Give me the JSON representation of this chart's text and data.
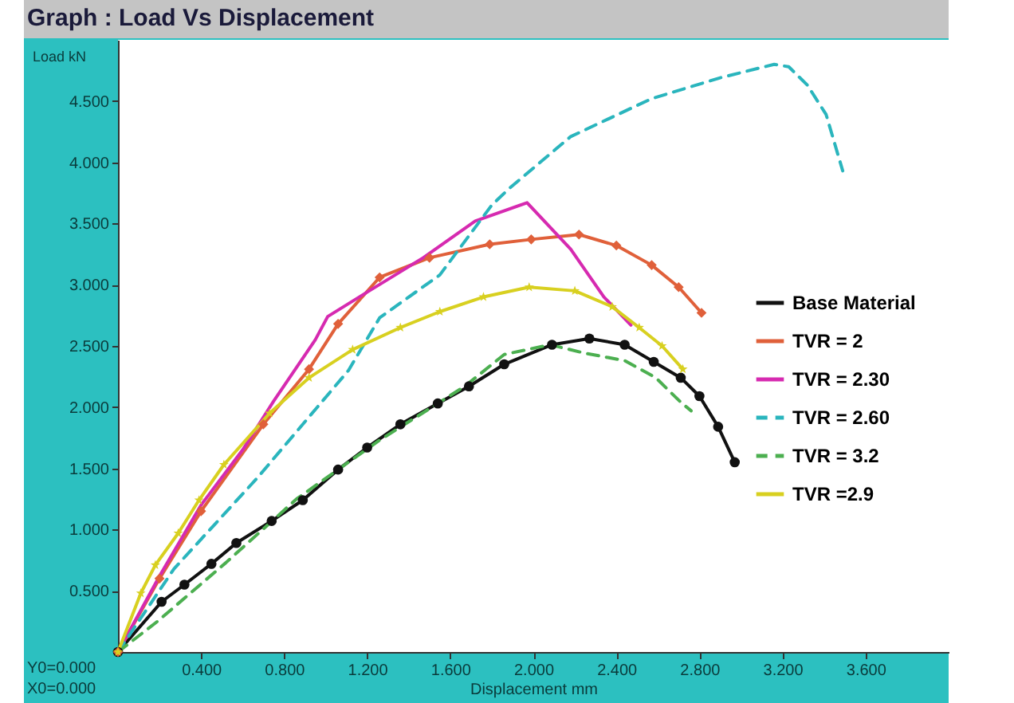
{
  "chart_data": {
    "type": "line",
    "title": "Graph : Load Vs Displacement",
    "xlabel": "Displacement  mm",
    "ylabel": "Load kN",
    "xlim": [
      0,
      4.0
    ],
    "ylim": [
      0,
      5.0
    ],
    "xticks": [
      {
        "value": 0.4,
        "label": "0.400"
      },
      {
        "value": 0.8,
        "label": "0.800"
      },
      {
        "value": 1.2,
        "label": "1.200"
      },
      {
        "value": 1.6,
        "label": "1.600"
      },
      {
        "value": 2.0,
        "label": "2.000"
      },
      {
        "value": 2.4,
        "label": "2.400"
      },
      {
        "value": 2.8,
        "label": "2.800"
      },
      {
        "value": 3.2,
        "label": "3.200"
      },
      {
        "value": 3.6,
        "label": "3.600"
      }
    ],
    "yticks": [
      {
        "value": 0.5,
        "label": "0.500"
      },
      {
        "value": 1.0,
        "label": "1.000"
      },
      {
        "value": 1.5,
        "label": "1.500"
      },
      {
        "value": 2.0,
        "label": "2.000"
      },
      {
        "value": 2.5,
        "label": "2.500"
      },
      {
        "value": 3.0,
        "label": "3.000"
      },
      {
        "value": 3.5,
        "label": "3.500"
      },
      {
        "value": 4.0,
        "label": "4.000"
      },
      {
        "value": 4.5,
        "label": "4.500"
      }
    ],
    "grid": false,
    "legend": "right",
    "annotations": [
      "Y0=0.000",
      "X0=0.000"
    ],
    "series": [
      {
        "name": "Base Material",
        "color": "#111111",
        "marker": "circle",
        "line_style": "solid",
        "x": [
          0,
          0.21,
          0.32,
          0.45,
          0.57,
          0.74,
          0.89,
          1.06,
          1.2,
          1.36,
          1.54,
          1.69,
          1.86,
          2.09,
          2.27,
          2.44,
          2.58,
          2.71,
          2.8,
          2.89,
          2.97
        ],
        "values": [
          0,
          0.41,
          0.55,
          0.72,
          0.89,
          1.07,
          1.24,
          1.49,
          1.67,
          1.86,
          2.03,
          2.17,
          2.35,
          2.51,
          2.56,
          2.51,
          2.37,
          2.24,
          2.09,
          1.84,
          1.55
        ]
      },
      {
        "name": "TVR = 2",
        "color": "#e0603a",
        "marker": "diamond",
        "line_style": "solid",
        "x": [
          0,
          0.2,
          0.4,
          0.7,
          0.92,
          1.06,
          1.26,
          1.5,
          1.79,
          1.99,
          2.22,
          2.4,
          2.57,
          2.7,
          2.81
        ],
        "values": [
          0,
          0.6,
          1.15,
          1.86,
          2.31,
          2.68,
          3.06,
          3.22,
          3.33,
          3.37,
          3.41,
          3.32,
          3.16,
          2.98,
          2.77
        ]
      },
      {
        "name": "TVR = 2.30",
        "color": "#d62ab0",
        "marker": "none",
        "line_style": "solid",
        "x": [
          0,
          0.2,
          0.4,
          0.6,
          0.75,
          0.95,
          1.01,
          1.21,
          1.47,
          1.72,
          1.97,
          2.18,
          2.34,
          2.47
        ],
        "values": [
          0,
          0.62,
          1.2,
          1.65,
          2.05,
          2.55,
          2.74,
          2.95,
          3.22,
          3.52,
          3.67,
          3.29,
          2.9,
          2.67
        ]
      },
      {
        "name": "TVR = 2.60",
        "color": "#2ab5bd",
        "marker": "none",
        "line_style": "dashed",
        "x": [
          0,
          0.27,
          0.67,
          1.11,
          1.26,
          1.55,
          1.8,
          1.88,
          2.18,
          2.57,
          2.9,
          3.16,
          3.23,
          3.32,
          3.41,
          3.49
        ],
        "values": [
          0,
          0.68,
          1.42,
          2.3,
          2.73,
          3.08,
          3.65,
          3.78,
          4.21,
          4.52,
          4.69,
          4.8,
          4.78,
          4.63,
          4.39,
          3.93
        ]
      },
      {
        "name": "TVR = 3.2",
        "color": "#4caf50",
        "marker": "none",
        "line_style": "dashed",
        "x": [
          0,
          0.19,
          0.52,
          0.86,
          1.26,
          1.67,
          1.86,
          2.08,
          2.25,
          2.44,
          2.59,
          2.71,
          2.76
        ],
        "values": [
          0,
          0.25,
          0.73,
          1.25,
          1.73,
          2.17,
          2.43,
          2.51,
          2.44,
          2.38,
          2.24,
          2.04,
          1.97
        ]
      },
      {
        "name": "TVR =2.9",
        "color": "#d8d020",
        "marker": "star",
        "line_style": "solid",
        "x": [
          0,
          0.11,
          0.18,
          0.29,
          0.39,
          0.51,
          0.73,
          0.92,
          1.13,
          1.36,
          1.55,
          1.76,
          1.98,
          2.2,
          2.38,
          2.51,
          2.62,
          2.72
        ],
        "values": [
          0,
          0.48,
          0.71,
          0.97,
          1.24,
          1.53,
          1.95,
          2.24,
          2.47,
          2.65,
          2.78,
          2.9,
          2.98,
          2.95,
          2.82,
          2.65,
          2.5,
          2.31
        ]
      }
    ]
  }
}
